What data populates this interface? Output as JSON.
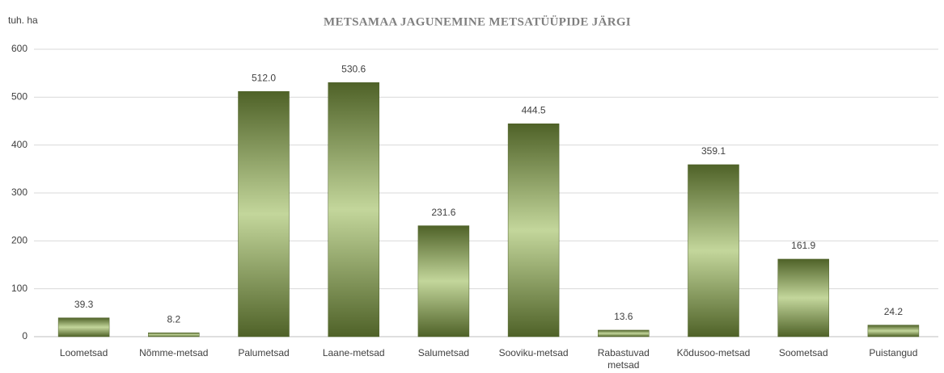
{
  "chart_data": {
    "type": "bar",
    "title": "METSAMAA JAGUNEMINE METSATÜÜPIDE JÄRGI",
    "y_axis_label": "tuh. ha",
    "categories": [
      "Loometsad",
      "Nõmme-metsad",
      "Palumetsad",
      "Laane-metsad",
      "Salumetsad",
      "Sooviku-metsad",
      "Rabastuvad metsad",
      "Kõdusoo-metsad",
      "Soometsad",
      "Puistangud"
    ],
    "values": [
      39.3,
      8.2,
      512.0,
      530.6,
      231.6,
      444.5,
      13.6,
      359.1,
      161.9,
      24.2
    ],
    "value_labels": [
      "39.3",
      "8.2",
      "512.0",
      "530.6",
      "231.6",
      "444.5",
      "13.6",
      "359.1",
      "161.9",
      "24.2"
    ],
    "color": "#4f6228",
    "ylim": [
      0,
      600
    ],
    "yticks": [
      0,
      100,
      200,
      300,
      400,
      500,
      600
    ],
    "grid": true
  }
}
